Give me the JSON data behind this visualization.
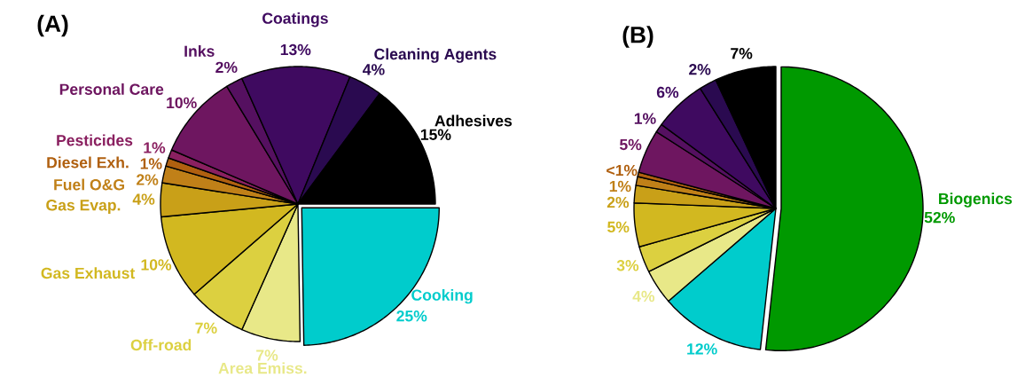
{
  "chart_data": [
    {
      "type": "pie",
      "title": "(A)",
      "categories": [
        "Cooking",
        "Area Emiss.",
        "Off-road",
        "Gas Exhaust",
        "Gas Evap.",
        "Fuel O&G",
        "Diesel Exh.",
        "Pesticides",
        "Personal Care",
        "Inks",
        "Coatings",
        "Cleaning Agents",
        "Adhesives"
      ],
      "values": [
        25,
        7,
        7,
        10,
        4,
        2,
        1,
        1,
        10,
        2,
        13,
        4,
        15
      ],
      "value_labels": [
        "25%",
        "7%",
        "7%",
        "10%",
        "4%",
        "2%",
        "1%",
        "1%",
        "10%",
        "2%",
        "13%",
        "4%",
        "15%"
      ],
      "colors": [
        "#00cccc",
        "#e8e888",
        "#dcd040",
        "#d2b820",
        "#c9a018",
        "#c08018",
        "#b06010",
        "#8a2060",
        "#6e1660",
        "#551060",
        "#3f0a60",
        "#2a0a50",
        "#000000"
      ]
    },
    {
      "type": "pie",
      "title": "(B)",
      "categories": [
        "Biogenics",
        null,
        null,
        null,
        null,
        null,
        null,
        null,
        null,
        null,
        null,
        null,
        null
      ],
      "values": [
        52,
        12,
        4,
        3,
        5,
        2,
        1,
        0.5,
        5,
        1,
        6,
        2,
        7
      ],
      "value_labels": [
        "52%",
        "12%",
        "4%",
        "3%",
        "5%",
        "2%",
        "1%",
        "<1%",
        "5%",
        "1%",
        "6%",
        "2%",
        "7%"
      ],
      "colors": [
        "#009900",
        "#00cccc",
        "#e8e888",
        "#dcd040",
        "#d2b820",
        "#c9a018",
        "#c08018",
        "#b06010",
        "#6e1660",
        "#551060",
        "#3f0a60",
        "#2a0a50",
        "#000000"
      ]
    }
  ]
}
